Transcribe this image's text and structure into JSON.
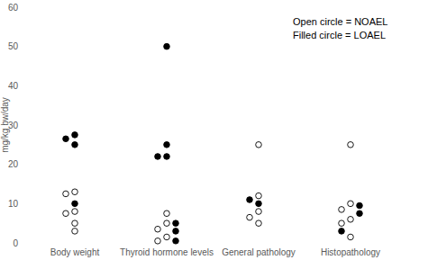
{
  "chart_data": {
    "type": "scatter",
    "y_label": "mg/kg bw/day",
    "categories": [
      "Body weight",
      "Thyroid hormone levels",
      "General pathology",
      "Histopathology"
    ],
    "ylim": [
      0,
      60
    ],
    "yticks": [
      0,
      10,
      20,
      30,
      40,
      50,
      60
    ],
    "grid": false,
    "legend": "top right",
    "series": [
      {
        "name": "Open circle = NOAEL",
        "marker": "open",
        "color": "#000000",
        "x": [
          "Body weight",
          "Body weight",
          "Body weight",
          "Body weight",
          "Body weight",
          "Body weight",
          "Thyroid hormone levels",
          "Thyroid hormone levels",
          "Thyroid hormone levels",
          "Thyroid hormone levels",
          "Thyroid hormone levels",
          "General pathology",
          "General pathology",
          "General pathology",
          "General pathology",
          "General pathology",
          "Histopathology",
          "Histopathology",
          "Histopathology",
          "Histopathology",
          "Histopathology",
          "Histopathology"
        ],
        "values": [
          13,
          12.5,
          8,
          7.5,
          5,
          3,
          7.5,
          5,
          3.5,
          1.5,
          0.5,
          25,
          12,
          8,
          6.5,
          5,
          25,
          10,
          8.5,
          6,
          5,
          1.5
        ]
      },
      {
        "name": "Filled circle = LOAEL",
        "marker": "filled",
        "color": "#000000",
        "x": [
          "Body weight",
          "Body weight",
          "Body weight",
          "Body weight",
          "Thyroid hormone levels",
          "Thyroid hormone levels",
          "Thyroid hormone levels",
          "Thyroid hormone levels",
          "Thyroid hormone levels",
          "Thyroid hormone levels",
          "Thyroid hormone levels",
          "General pathology",
          "General pathology",
          "Histopathology",
          "Histopathology",
          "Histopathology"
        ],
        "values": [
          27.5,
          26.5,
          25,
          10,
          50,
          25,
          22,
          22,
          5,
          3,
          0.5,
          11,
          10,
          9.5,
          7.5,
          3
        ]
      }
    ]
  }
}
